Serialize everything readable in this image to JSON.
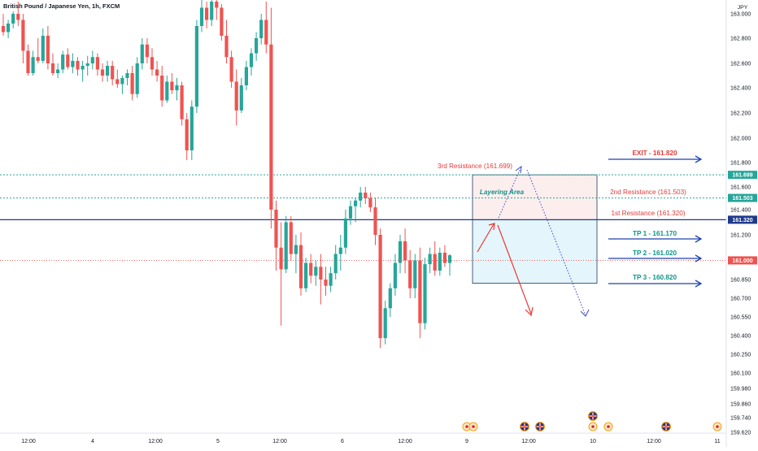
{
  "header": {
    "title": "British Pound / Japanese Yen, 1h, FXCM"
  },
  "currency_label": "JPY",
  "colors": {
    "up": "#26a69a",
    "down": "#ef5350",
    "resistance_line": "#26a69a",
    "key_line": "#1e3a8a",
    "price_line": "#ef5350",
    "arrow_blue": "#1e40af",
    "annotation_red": "#e53935",
    "tp_text": "#0d9488",
    "zone_red": "#fdecec",
    "zone_blue": "#e1f4fb",
    "zone_border": "#1e3a5f",
    "projection_blue": "#3b4bc8"
  },
  "chart_data": {
    "type": "candlestick",
    "symbol": "British Pound / Japanese Yen",
    "timeframe": "1h",
    "source": "FXCM",
    "y_unit": "JPY",
    "yticks": [
      163.0,
      162.8,
      162.6,
      162.4,
      162.2,
      162.0,
      161.8,
      161.6,
      161.4,
      161.2,
      160.85,
      160.7,
      160.55,
      160.4,
      160.25,
      160.1,
      159.98,
      159.86,
      159.74,
      159.62
    ],
    "ytick_labels": [
      "163.000",
      "162.800",
      "162.600",
      "162.400",
      "162.200",
      "162.000",
      "161.800",
      "161.600",
      "161.400",
      "161.200",
      "160.850",
      "160.700",
      "160.550",
      "160.400",
      "160.250",
      "160.100",
      "159.980",
      "159.860",
      "159.740",
      "159.620"
    ],
    "x_axis_labels": [
      "12:00",
      "4",
      "12:00",
      "5",
      "12:00",
      "6",
      "12:00",
      "9",
      "12:00",
      "10",
      "12:00",
      "11"
    ],
    "price_markers": [
      {
        "label": "161.699",
        "value": 161.699,
        "role": "resistance-3"
      },
      {
        "label": "161.503",
        "value": 161.503,
        "role": "resistance-2"
      },
      {
        "label": "161.320",
        "value": 161.32,
        "role": "resistance-1"
      },
      {
        "label": "161.000",
        "value": 161.0,
        "role": "current-price"
      }
    ],
    "candles": [
      {
        "o": 162.9,
        "h": 163.0,
        "l": 162.82,
        "c": 162.85
      },
      {
        "o": 162.85,
        "h": 162.95,
        "l": 162.8,
        "c": 162.92
      },
      {
        "o": 162.92,
        "h": 163.02,
        "l": 162.88,
        "c": 163.0
      },
      {
        "o": 163.0,
        "h": 163.1,
        "l": 162.9,
        "c": 162.95
      },
      {
        "o": 162.95,
        "h": 163.0,
        "l": 162.6,
        "c": 162.7
      },
      {
        "o": 162.7,
        "h": 162.75,
        "l": 162.5,
        "c": 162.52
      },
      {
        "o": 162.52,
        "h": 162.7,
        "l": 162.5,
        "c": 162.65
      },
      {
        "o": 162.65,
        "h": 162.8,
        "l": 162.6,
        "c": 162.62
      },
      {
        "o": 162.62,
        "h": 162.88,
        "l": 162.6,
        "c": 162.82
      },
      {
        "o": 162.82,
        "h": 162.9,
        "l": 162.55,
        "c": 162.6
      },
      {
        "o": 162.6,
        "h": 162.68,
        "l": 162.5,
        "c": 162.52
      },
      {
        "o": 162.52,
        "h": 162.6,
        "l": 162.48,
        "c": 162.55
      },
      {
        "o": 162.55,
        "h": 162.7,
        "l": 162.52,
        "c": 162.67
      },
      {
        "o": 162.67,
        "h": 162.72,
        "l": 162.55,
        "c": 162.57
      },
      {
        "o": 162.57,
        "h": 162.68,
        "l": 162.52,
        "c": 162.62
      },
      {
        "o": 162.62,
        "h": 162.65,
        "l": 162.5,
        "c": 162.55
      },
      {
        "o": 162.55,
        "h": 162.62,
        "l": 162.45,
        "c": 162.58
      },
      {
        "o": 162.58,
        "h": 162.66,
        "l": 162.5,
        "c": 162.6
      },
      {
        "o": 162.6,
        "h": 162.7,
        "l": 162.55,
        "c": 162.65
      },
      {
        "o": 162.65,
        "h": 162.68,
        "l": 162.5,
        "c": 162.55
      },
      {
        "o": 162.55,
        "h": 162.6,
        "l": 162.45,
        "c": 162.5
      },
      {
        "o": 162.5,
        "h": 162.62,
        "l": 162.45,
        "c": 162.58
      },
      {
        "o": 162.58,
        "h": 162.62,
        "l": 162.42,
        "c": 162.47
      },
      {
        "o": 162.47,
        "h": 162.55,
        "l": 162.4,
        "c": 162.43
      },
      {
        "o": 162.43,
        "h": 162.5,
        "l": 162.35,
        "c": 162.48
      },
      {
        "o": 162.48,
        "h": 162.55,
        "l": 162.42,
        "c": 162.52
      },
      {
        "o": 162.52,
        "h": 162.58,
        "l": 162.3,
        "c": 162.35
      },
      {
        "o": 162.35,
        "h": 162.65,
        "l": 162.32,
        "c": 162.6
      },
      {
        "o": 162.6,
        "h": 162.8,
        "l": 162.55,
        "c": 162.75
      },
      {
        "o": 162.75,
        "h": 162.8,
        "l": 162.6,
        "c": 162.65
      },
      {
        "o": 162.65,
        "h": 162.72,
        "l": 162.5,
        "c": 162.55
      },
      {
        "o": 162.55,
        "h": 162.62,
        "l": 162.45,
        "c": 162.5
      },
      {
        "o": 162.5,
        "h": 162.58,
        "l": 162.25,
        "c": 162.3
      },
      {
        "o": 162.3,
        "h": 162.5,
        "l": 162.28,
        "c": 162.45
      },
      {
        "o": 162.45,
        "h": 162.52,
        "l": 162.35,
        "c": 162.38
      },
      {
        "o": 162.38,
        "h": 162.48,
        "l": 162.3,
        "c": 162.42
      },
      {
        "o": 162.42,
        "h": 162.45,
        "l": 162.1,
        "c": 162.15
      },
      {
        "o": 162.15,
        "h": 162.2,
        "l": 161.82,
        "c": 161.9
      },
      {
        "o": 161.9,
        "h": 162.3,
        "l": 161.82,
        "c": 162.25
      },
      {
        "o": 162.25,
        "h": 162.95,
        "l": 162.2,
        "c": 162.9
      },
      {
        "o": 162.9,
        "h": 163.15,
        "l": 162.85,
        "c": 163.05
      },
      {
        "o": 163.05,
        "h": 163.1,
        "l": 162.88,
        "c": 162.95
      },
      {
        "o": 162.95,
        "h": 163.15,
        "l": 162.9,
        "c": 163.1
      },
      {
        "o": 163.1,
        "h": 163.2,
        "l": 162.95,
        "c": 163.05
      },
      {
        "o": 163.05,
        "h": 163.08,
        "l": 162.78,
        "c": 162.82
      },
      {
        "o": 162.82,
        "h": 162.95,
        "l": 162.6,
        "c": 162.65
      },
      {
        "o": 162.65,
        "h": 162.7,
        "l": 162.4,
        "c": 162.45
      },
      {
        "o": 162.45,
        "h": 162.55,
        "l": 162.1,
        "c": 162.22
      },
      {
        "o": 162.22,
        "h": 162.48,
        "l": 162.2,
        "c": 162.42
      },
      {
        "o": 162.42,
        "h": 162.62,
        "l": 162.38,
        "c": 162.57
      },
      {
        "o": 162.57,
        "h": 162.72,
        "l": 162.5,
        "c": 162.68
      },
      {
        "o": 162.68,
        "h": 162.85,
        "l": 162.62,
        "c": 162.8
      },
      {
        "o": 162.8,
        "h": 163.0,
        "l": 162.75,
        "c": 162.95
      },
      {
        "o": 162.95,
        "h": 163.1,
        "l": 162.68,
        "c": 162.75
      },
      {
        "o": 162.75,
        "h": 163.05,
        "l": 161.25,
        "c": 161.4
      },
      {
        "o": 161.4,
        "h": 161.48,
        "l": 160.92,
        "c": 161.1
      },
      {
        "o": 161.1,
        "h": 161.3,
        "l": 160.48,
        "c": 160.93
      },
      {
        "o": 160.93,
        "h": 161.35,
        "l": 160.9,
        "c": 161.3
      },
      {
        "o": 161.3,
        "h": 161.35,
        "l": 161.0,
        "c": 161.05
      },
      {
        "o": 161.05,
        "h": 161.2,
        "l": 160.9,
        "c": 161.12
      },
      {
        "o": 161.12,
        "h": 161.22,
        "l": 160.72,
        "c": 160.78
      },
      {
        "o": 160.78,
        "h": 161.02,
        "l": 160.75,
        "c": 160.98
      },
      {
        "o": 160.98,
        "h": 161.05,
        "l": 160.82,
        "c": 160.88
      },
      {
        "o": 160.88,
        "h": 161.0,
        "l": 160.8,
        "c": 160.95
      },
      {
        "o": 160.95,
        "h": 161.05,
        "l": 160.65,
        "c": 160.85
      },
      {
        "o": 160.85,
        "h": 160.95,
        "l": 160.72,
        "c": 160.8
      },
      {
        "o": 160.8,
        "h": 160.95,
        "l": 160.75,
        "c": 160.9
      },
      {
        "o": 160.9,
        "h": 161.12,
        "l": 160.85,
        "c": 161.05
      },
      {
        "o": 161.05,
        "h": 161.2,
        "l": 160.92,
        "c": 161.1
      },
      {
        "o": 161.1,
        "h": 161.4,
        "l": 161.05,
        "c": 161.33
      },
      {
        "o": 161.33,
        "h": 161.48,
        "l": 161.28,
        "c": 161.43
      },
      {
        "o": 161.43,
        "h": 161.5,
        "l": 161.3,
        "c": 161.48
      },
      {
        "o": 161.48,
        "h": 161.6,
        "l": 161.42,
        "c": 161.55
      },
      {
        "o": 161.55,
        "h": 161.6,
        "l": 161.45,
        "c": 161.5
      },
      {
        "o": 161.5,
        "h": 161.55,
        "l": 161.38,
        "c": 161.42
      },
      {
        "o": 161.42,
        "h": 161.5,
        "l": 161.12,
        "c": 161.2
      },
      {
        "o": 161.2,
        "h": 161.25,
        "l": 160.3,
        "c": 160.38
      },
      {
        "o": 160.38,
        "h": 160.68,
        "l": 160.33,
        "c": 160.62
      },
      {
        "o": 160.62,
        "h": 160.82,
        "l": 160.55,
        "c": 160.78
      },
      {
        "o": 160.78,
        "h": 161.05,
        "l": 160.72,
        "c": 160.98
      },
      {
        "o": 160.98,
        "h": 161.2,
        "l": 160.9,
        "c": 161.15
      },
      {
        "o": 161.15,
        "h": 161.25,
        "l": 160.9,
        "c": 161.0
      },
      {
        "o": 161.0,
        "h": 161.08,
        "l": 160.7,
        "c": 160.78
      },
      {
        "o": 160.78,
        "h": 161.05,
        "l": 160.7,
        "c": 161.0
      },
      {
        "o": 161.0,
        "h": 161.1,
        "l": 160.38,
        "c": 160.5
      },
      {
        "o": 160.5,
        "h": 161.02,
        "l": 160.45,
        "c": 160.97
      },
      {
        "o": 160.97,
        "h": 161.1,
        "l": 160.9,
        "c": 161.05
      },
      {
        "o": 161.05,
        "h": 161.15,
        "l": 160.88,
        "c": 160.92
      },
      {
        "o": 160.92,
        "h": 161.1,
        "l": 160.88,
        "c": 161.06
      },
      {
        "o": 161.06,
        "h": 161.12,
        "l": 160.95,
        "c": 160.98
      },
      {
        "o": 160.98,
        "h": 161.05,
        "l": 160.88,
        "c": 161.04
      }
    ]
  },
  "annotations": {
    "resistance_3": "3rd Resistance (161.699)",
    "resistance_2": "2nd Resistance (161.503)",
    "resistance_1": "1st Resistance (161.320)",
    "layering": "Layering Area",
    "exit": "EXIT - 161.820",
    "tp1": "TP 1 - 161.170",
    "tp2": "TP 2 - 161.020",
    "tp3": "TP 3 - 160.820"
  },
  "event_markers": [
    {
      "icon": "event-dot-icon"
    },
    {
      "icon": "event-dot-icon"
    },
    {
      "icon": "uk-flag-icon"
    },
    {
      "icon": "uk-flag-icon"
    },
    {
      "icon": "uk-flag-icon"
    },
    {
      "icon": "event-dot-icon"
    },
    {
      "icon": "event-dot-icon"
    },
    {
      "icon": "uk-flag-icon"
    },
    {
      "icon": "event-dot-icon"
    }
  ]
}
